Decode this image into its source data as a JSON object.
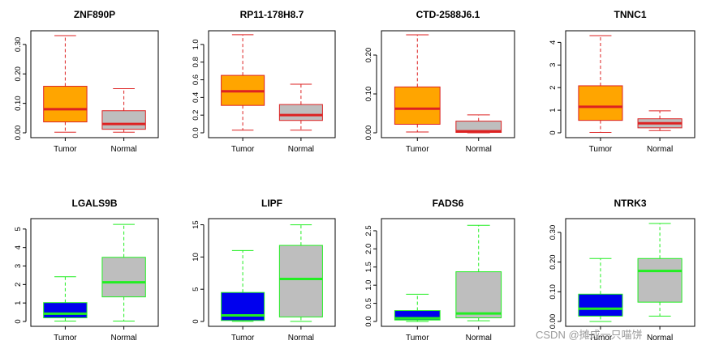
{
  "watermark": "CSDN @摊成一只喵饼",
  "colors": {
    "tumor_up_fill": "#FFA500",
    "tumor_up_border": "#DD2222",
    "normal_fill": "#BEBEBE",
    "tumor_down_fill": "#0000EE",
    "tumor_down_border": "#22EE22",
    "median_up": "#DD2222",
    "median_down": "#22EE22"
  },
  "chart_data": [
    {
      "type": "box",
      "title": "ZNF890P",
      "ylim": [
        0,
        0.33
      ],
      "yticks": [
        "0.00",
        "0.10",
        "0.20",
        "0.30"
      ],
      "ytick_values": [
        0,
        0.1,
        0.2,
        0.3
      ],
      "categories": [
        "Tumor",
        "Normal"
      ],
      "style": "up",
      "boxes": [
        {
          "min": 0.002,
          "q1": 0.037,
          "median": 0.08,
          "q3": 0.158,
          "max": 0.33
        },
        {
          "min": 0.002,
          "q1": 0.012,
          "median": 0.03,
          "q3": 0.075,
          "max": 0.15
        }
      ]
    },
    {
      "type": "box",
      "title": "RP11-178H8.7",
      "ylim": [
        0,
        1.1
      ],
      "yticks": [
        "0.0",
        "0.2",
        "0.4",
        "0.6",
        "0.8",
        "1.0"
      ],
      "ytick_values": [
        0,
        0.2,
        0.4,
        0.6,
        0.8,
        1.0
      ],
      "categories": [
        "Tumor",
        "Normal"
      ],
      "style": "up",
      "boxes": [
        {
          "min": 0.03,
          "q1": 0.31,
          "median": 0.47,
          "q3": 0.65,
          "max": 1.11
        },
        {
          "min": 0.03,
          "q1": 0.14,
          "median": 0.2,
          "q3": 0.32,
          "max": 0.55
        }
      ]
    },
    {
      "type": "box",
      "title": "CTD-2588J6.1",
      "ylim": [
        0,
        0.25
      ],
      "yticks": [
        "0.00",
        "0.10",
        "0.20"
      ],
      "ytick_values": [
        0,
        0.1,
        0.2
      ],
      "categories": [
        "Tumor",
        "Normal"
      ],
      "style": "up",
      "boxes": [
        {
          "min": 0.002,
          "q1": 0.022,
          "median": 0.062,
          "q3": 0.118,
          "max": 0.252
        },
        {
          "min": 0.0,
          "q1": 0.001,
          "median": 0.004,
          "q3": 0.03,
          "max": 0.046
        }
      ]
    },
    {
      "type": "box",
      "title": "TNNC1",
      "ylim": [
        0,
        4.3
      ],
      "yticks": [
        "0",
        "1",
        "2",
        "3",
        "4"
      ],
      "ytick_values": [
        0,
        1,
        2,
        3,
        4
      ],
      "categories": [
        "Tumor",
        "Normal"
      ],
      "style": "up",
      "boxes": [
        {
          "min": 0.02,
          "q1": 0.55,
          "median": 1.15,
          "q3": 2.08,
          "max": 4.3
        },
        {
          "min": 0.1,
          "q1": 0.22,
          "median": 0.42,
          "q3": 0.62,
          "max": 0.97
        }
      ]
    },
    {
      "type": "box",
      "title": "LGALS9B",
      "ylim": [
        0,
        5.3
      ],
      "yticks": [
        "0",
        "1",
        "2",
        "3",
        "4",
        "5"
      ],
      "ytick_values": [
        0,
        1,
        2,
        3,
        4,
        5
      ],
      "categories": [
        "Tumor",
        "Normal"
      ],
      "style": "down",
      "boxes": [
        {
          "min": 0.02,
          "q1": 0.2,
          "median": 0.42,
          "q3": 1.02,
          "max": 2.42
        },
        {
          "min": 0.02,
          "q1": 1.33,
          "median": 2.12,
          "q3": 3.47,
          "max": 5.25
        }
      ]
    },
    {
      "type": "box",
      "title": "LIPF",
      "ylim": [
        0,
        15.2
      ],
      "yticks": [
        "0",
        "5",
        "10",
        "15"
      ],
      "ytick_values": [
        0,
        5,
        10,
        15
      ],
      "categories": [
        "Tumor",
        "Normal"
      ],
      "style": "down",
      "boxes": [
        {
          "min": 0.02,
          "q1": 0.15,
          "median": 0.95,
          "q3": 4.5,
          "max": 11.0
        },
        {
          "min": 0.02,
          "q1": 0.7,
          "median": 6.6,
          "q3": 11.8,
          "max": 15.0
        }
      ]
    },
    {
      "type": "box",
      "title": "FADS6",
      "ylim": [
        0,
        2.7
      ],
      "yticks": [
        "0.0",
        "0.5",
        "1.0",
        "1.5",
        "2.0",
        "2.5"
      ],
      "ytick_values": [
        0,
        0.5,
        1.0,
        1.5,
        2.0,
        2.5
      ],
      "categories": [
        "Tumor",
        "Normal"
      ],
      "style": "down",
      "boxes": [
        {
          "min": 0.0,
          "q1": 0.04,
          "median": 0.09,
          "q3": 0.3,
          "max": 0.75
        },
        {
          "min": 0.02,
          "q1": 0.1,
          "median": 0.22,
          "q3": 1.37,
          "max": 2.65
        }
      ]
    },
    {
      "type": "box",
      "title": "NTRK3",
      "ylim": [
        0,
        0.33
      ],
      "yticks": [
        "0.00",
        "0.10",
        "0.20",
        "0.30"
      ],
      "ytick_values": [
        0,
        0.1,
        0.2,
        0.3
      ],
      "categories": [
        "Tumor",
        "Normal"
      ],
      "style": "down",
      "boxes": [
        {
          "min": 0.0,
          "q1": 0.018,
          "median": 0.043,
          "q3": 0.092,
          "max": 0.212
        },
        {
          "min": 0.018,
          "q1": 0.065,
          "median": 0.17,
          "q3": 0.212,
          "max": 0.33
        }
      ]
    }
  ]
}
